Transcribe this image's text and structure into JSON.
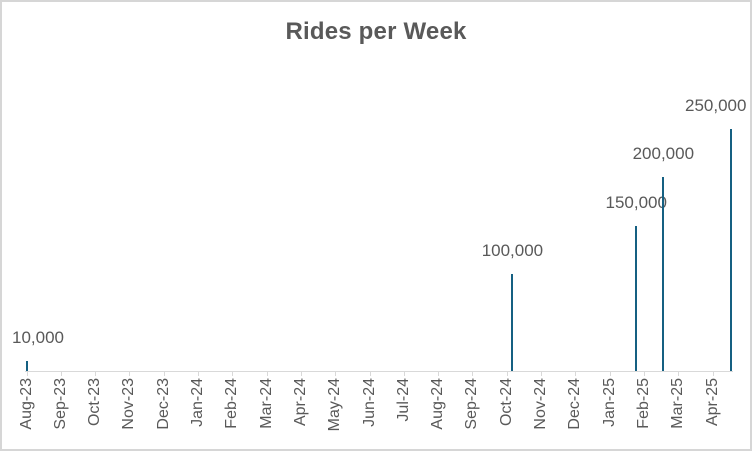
{
  "chart": {
    "title": "Rides per Week"
  },
  "chart_data": {
    "type": "bar",
    "title": "Rides per Week",
    "xlabel": "",
    "ylabel": "",
    "ylim": [
      0,
      250000
    ],
    "y_axis_visible": false,
    "gridlines": false,
    "legend_position": "none",
    "x_tick_label_rotation": 90,
    "categories": [
      "Aug-23",
      "Sep-23",
      "Oct-23",
      "Nov-23",
      "Dec-23",
      "Jan-24",
      "Feb-24",
      "Mar-24",
      "Apr-24",
      "May-24",
      "Jun-24",
      "Jul-24",
      "Aug-24",
      "Sep-24",
      "Oct-24",
      "Nov-24",
      "Dec-24",
      "Jan-25",
      "Feb-25",
      "Mar-25",
      "Apr-25"
    ],
    "points": [
      {
        "period": "Aug-23",
        "month_offset": 0.0,
        "value": 10000,
        "data_label": "10,000"
      },
      {
        "period": "Oct-24",
        "month_offset": 14.16,
        "value": 100000,
        "data_label": "100,000"
      },
      {
        "period": "Jan-25",
        "month_offset": 17.77,
        "value": 150000,
        "data_label": "150,000"
      },
      {
        "period": "Feb-25",
        "month_offset": 18.56,
        "value": 200000,
        "data_label": "200,000"
      },
      {
        "period": "Apr-25",
        "month_offset": 20.54,
        "value": 250000,
        "data_label": "250,000"
      }
    ],
    "colors": {
      "stem": "#156082",
      "title_text": "#595959",
      "data_label_text": "#595959",
      "axis_label_text": "#595959",
      "axis_line": "#d9d9d9",
      "chart_border": "#d6d6d6",
      "background": "#ffffff"
    }
  }
}
